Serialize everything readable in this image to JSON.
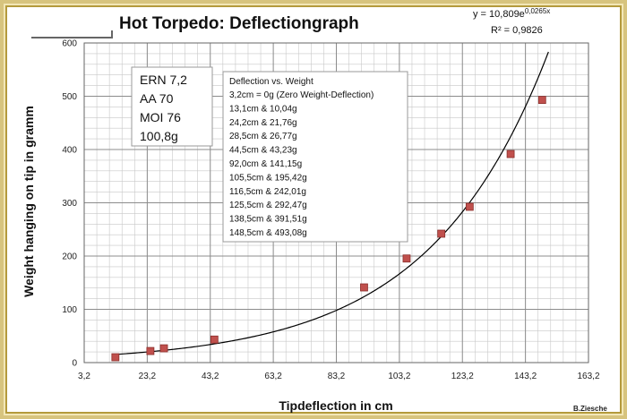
{
  "title": "Hot Torpedo: Deflectiongraph",
  "credit": "B.Ziesche",
  "equation": {
    "line1_prefix": "y = 10,809e",
    "line1_exponent": "0,0265x",
    "line2": "R² = 0,9826"
  },
  "info_box": {
    "lines": [
      "ERN 7,2",
      "AA 70",
      "MOI 76",
      "100,8g"
    ]
  },
  "legend_box": {
    "heading": "Deflection vs. Weight",
    "lines": [
      "3,2cm = 0g (Zero Weight-Deflection)",
      "13,1cm & 10,04g",
      "24,2cm & 21,76g",
      "28,5cm & 26,77g",
      "44,5cm & 43,23g",
      "92,0cm & 141,15g",
      "105,5cm & 195,42g",
      "116,5cm & 242,01g",
      "125,5cm & 292,47g",
      "138,5cm & 391,51g",
      "148,5cm & 493,08g"
    ]
  },
  "chart_data": {
    "type": "scatter",
    "xlabel": "Tipdeflection in cm",
    "ylabel": "Weight hanging on tip in gramm",
    "xlim": [
      3.2,
      163.2
    ],
    "ylim": [
      0,
      600
    ],
    "x_ticks": [
      "3,2",
      "23,2",
      "43,2",
      "63,2",
      "83,2",
      "103,2",
      "123,2",
      "143,2",
      "163,2"
    ],
    "y_ticks": [
      "0",
      "100",
      "200",
      "300",
      "400",
      "500",
      "600"
    ],
    "grid": true,
    "marker_color": "#c0504d",
    "trendline": {
      "type": "exponential",
      "a": 10.809,
      "b": 0.0265,
      "color": "#000000"
    },
    "points": [
      {
        "x": 13.1,
        "y": 10.04
      },
      {
        "x": 24.2,
        "y": 21.76
      },
      {
        "x": 28.5,
        "y": 26.77
      },
      {
        "x": 44.5,
        "y": 43.23
      },
      {
        "x": 92.0,
        "y": 141.15
      },
      {
        "x": 105.5,
        "y": 195.42
      },
      {
        "x": 116.5,
        "y": 242.01
      },
      {
        "x": 125.5,
        "y": 292.47
      },
      {
        "x": 138.5,
        "y": 391.51
      },
      {
        "x": 148.5,
        "y": 493.08
      }
    ]
  }
}
